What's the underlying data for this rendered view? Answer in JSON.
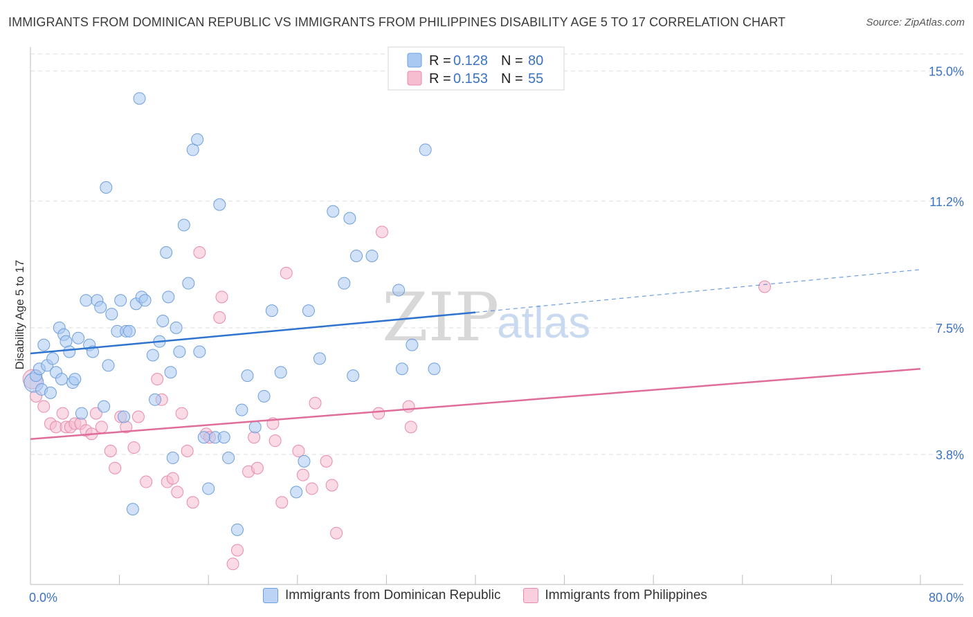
{
  "title": "IMMIGRANTS FROM DOMINICAN REPUBLIC VS IMMIGRANTS FROM PHILIPPINES DISABILITY AGE 5 TO 17 CORRELATION CHART",
  "source": "Source: ZipAtlas.com",
  "watermark": {
    "zip": "ZIP",
    "atlas": "atlas"
  },
  "colors": {
    "blue_fill": "#a9c8f2",
    "blue_stroke": "#6d9fdc",
    "blue_line": "#2f73d0",
    "pink_fill": "#f6bcd0",
    "pink_stroke": "#e98aab",
    "pink_line": "#e06d99",
    "tick_text": "#3b73c4",
    "grid": "#dedede"
  },
  "legend": {
    "r_label": "R =",
    "n_label": "N =",
    "rows": [
      {
        "r": "0.128",
        "n": "80"
      },
      {
        "r": "0.153",
        "n": "55"
      }
    ]
  },
  "chart_data": {
    "type": "scatter",
    "title": "IMMIGRANTS FROM DOMINICAN REPUBLIC VS IMMIGRANTS FROM PHILIPPINES DISABILITY AGE 5 TO 17 CORRELATION CHART",
    "xlabel": "",
    "ylabel": "Disability Age 5 to 17",
    "xlim": [
      0,
      80
    ],
    "ylim": [
      0,
      15.5
    ],
    "x_tick_labels": [
      "0.0%",
      "80.0%"
    ],
    "y_ticks": [
      3.8,
      7.5,
      11.2,
      15.0
    ],
    "y_tick_labels": [
      "3.8%",
      "7.5%",
      "11.2%",
      "15.0%"
    ],
    "grid": true,
    "legend_position": "top-center",
    "series": [
      {
        "name": "Immigrants from Dominican Republic",
        "color": "#a9c8f2",
        "trend": {
          "x0": 0,
          "y0": 6.75,
          "x1": 40,
          "y1": 7.95,
          "dashed_to_x": 80,
          "dashed_to_y": 9.2
        },
        "points": [
          [
            0.3,
            5.9
          ],
          [
            0.5,
            6.1
          ],
          [
            0.8,
            6.3
          ],
          [
            1.0,
            5.7
          ],
          [
            1.2,
            7.0
          ],
          [
            1.5,
            6.4
          ],
          [
            1.8,
            5.6
          ],
          [
            2.0,
            6.6
          ],
          [
            2.3,
            6.2
          ],
          [
            2.6,
            7.5
          ],
          [
            2.8,
            6.0
          ],
          [
            3.0,
            7.3
          ],
          [
            3.2,
            7.1
          ],
          [
            3.5,
            6.8
          ],
          [
            3.8,
            5.9
          ],
          [
            4.0,
            6.0
          ],
          [
            4.3,
            7.2
          ],
          [
            4.6,
            5.0
          ],
          [
            5.0,
            8.3
          ],
          [
            5.3,
            7.0
          ],
          [
            5.6,
            6.8
          ],
          [
            6.0,
            8.3
          ],
          [
            6.3,
            8.1
          ],
          [
            6.6,
            5.2
          ],
          [
            6.8,
            11.6
          ],
          [
            7.0,
            6.4
          ],
          [
            7.3,
            7.9
          ],
          [
            7.8,
            7.4
          ],
          [
            8.1,
            8.3
          ],
          [
            8.4,
            4.9
          ],
          [
            8.6,
            7.4
          ],
          [
            8.9,
            7.4
          ],
          [
            9.2,
            2.2
          ],
          [
            9.5,
            8.2
          ],
          [
            9.8,
            14.2
          ],
          [
            10.0,
            8.4
          ],
          [
            10.3,
            8.3
          ],
          [
            11.0,
            6.7
          ],
          [
            11.2,
            5.4
          ],
          [
            11.6,
            7.1
          ],
          [
            11.9,
            7.7
          ],
          [
            12.2,
            9.7
          ],
          [
            12.4,
            8.4
          ],
          [
            12.6,
            6.2
          ],
          [
            12.8,
            3.7
          ],
          [
            13.1,
            7.5
          ],
          [
            13.4,
            6.8
          ],
          [
            13.8,
            10.5
          ],
          [
            14.2,
            8.8
          ],
          [
            14.6,
            12.7
          ],
          [
            15.0,
            13.0
          ],
          [
            15.2,
            6.8
          ],
          [
            15.6,
            4.3
          ],
          [
            16.0,
            2.8
          ],
          [
            16.6,
            4.3
          ],
          [
            17.0,
            11.1
          ],
          [
            17.4,
            4.3
          ],
          [
            17.8,
            3.7
          ],
          [
            18.6,
            1.6
          ],
          [
            19.0,
            5.1
          ],
          [
            19.5,
            6.1
          ],
          [
            20.2,
            4.6
          ],
          [
            21.0,
            5.5
          ],
          [
            21.7,
            8.0
          ],
          [
            22.5,
            6.2
          ],
          [
            23.9,
            2.7
          ],
          [
            24.6,
            3.6
          ],
          [
            25.0,
            8.0
          ],
          [
            26.0,
            6.6
          ],
          [
            27.2,
            10.9
          ],
          [
            28.2,
            8.8
          ],
          [
            28.7,
            10.7
          ],
          [
            29.0,
            6.1
          ],
          [
            29.3,
            9.6
          ],
          [
            30.7,
            9.6
          ],
          [
            33.1,
            8.6
          ],
          [
            33.4,
            6.3
          ],
          [
            34.3,
            7.0
          ],
          [
            35.5,
            12.7
          ],
          [
            36.3,
            6.3
          ]
        ]
      },
      {
        "name": "Immigrants from Philippines",
        "color": "#f6bcd0",
        "trend": {
          "x0": 0,
          "y0": 4.25,
          "x1": 80,
          "y1": 6.3
        },
        "points": [
          [
            0.2,
            6.0
          ],
          [
            0.5,
            5.5
          ],
          [
            1.2,
            5.2
          ],
          [
            1.8,
            4.7
          ],
          [
            2.3,
            4.6
          ],
          [
            2.9,
            5.0
          ],
          [
            3.2,
            4.6
          ],
          [
            3.6,
            4.6
          ],
          [
            4.0,
            4.7
          ],
          [
            4.5,
            4.7
          ],
          [
            5.0,
            4.5
          ],
          [
            5.5,
            4.4
          ],
          [
            5.9,
            5.0
          ],
          [
            6.4,
            4.6
          ],
          [
            7.2,
            3.9
          ],
          [
            7.6,
            3.4
          ],
          [
            8.1,
            4.9
          ],
          [
            8.6,
            4.6
          ],
          [
            9.3,
            4.0
          ],
          [
            9.7,
            4.9
          ],
          [
            10.4,
            3.0
          ],
          [
            11.4,
            6.0
          ],
          [
            11.8,
            5.4
          ],
          [
            12.3,
            3.0
          ],
          [
            12.8,
            3.1
          ],
          [
            13.2,
            2.7
          ],
          [
            13.6,
            5.0
          ],
          [
            14.1,
            3.9
          ],
          [
            14.6,
            2.4
          ],
          [
            15.2,
            9.7
          ],
          [
            15.8,
            4.4
          ],
          [
            16.1,
            4.3
          ],
          [
            17.0,
            7.8
          ],
          [
            17.2,
            8.4
          ],
          [
            18.2,
            0.6
          ],
          [
            18.6,
            1.0
          ],
          [
            19.6,
            3.3
          ],
          [
            20.1,
            4.3
          ],
          [
            20.4,
            3.4
          ],
          [
            21.8,
            4.7
          ],
          [
            22.0,
            4.2
          ],
          [
            22.6,
            2.4
          ],
          [
            23.0,
            9.1
          ],
          [
            24.1,
            3.9
          ],
          [
            24.5,
            3.2
          ],
          [
            25.3,
            2.8
          ],
          [
            25.6,
            5.3
          ],
          [
            26.6,
            3.6
          ],
          [
            27.1,
            2.9
          ],
          [
            27.5,
            1.5
          ],
          [
            31.3,
            5.0
          ],
          [
            31.6,
            10.3
          ],
          [
            34.0,
            5.2
          ],
          [
            34.2,
            4.6
          ],
          [
            66.0,
            8.7
          ]
        ]
      }
    ]
  },
  "bottom_legend": [
    "Immigrants from Dominican Republic",
    "Immigrants from Philippines"
  ]
}
